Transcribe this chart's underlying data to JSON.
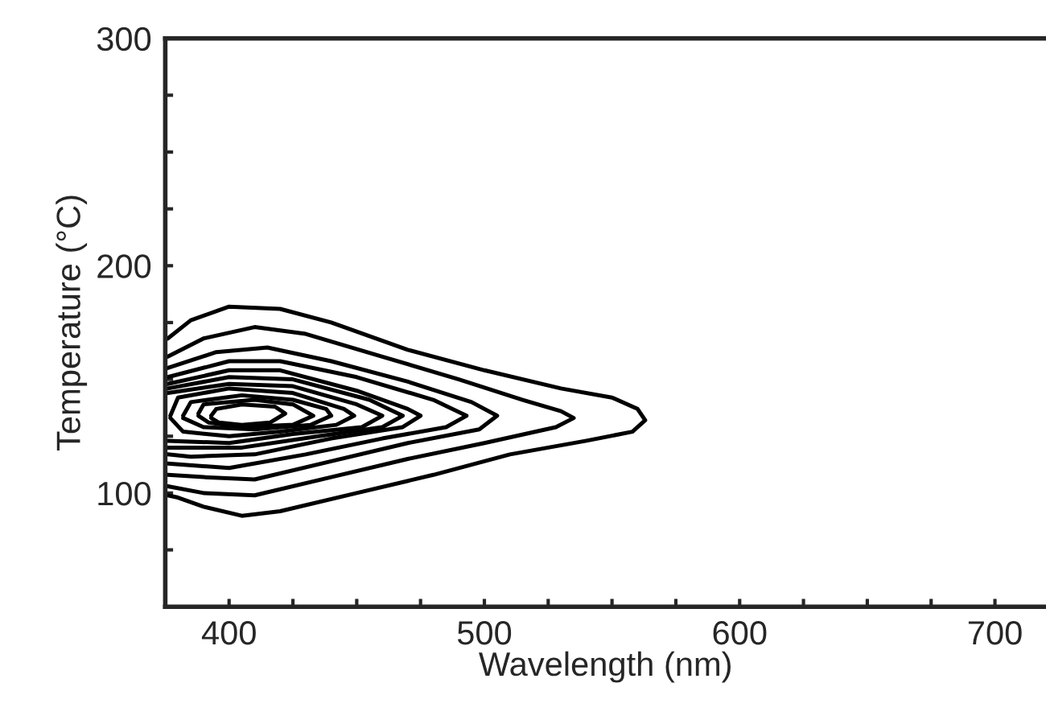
{
  "chart_data": {
    "type": "line",
    "xlabel": "Wavelength (nm)",
    "ylabel": "Temperature (°C)",
    "xlim": [
      375,
      720
    ],
    "ylim": [
      50,
      300
    ],
    "xticks": [
      {
        "value": 400,
        "label": "400"
      },
      {
        "value": 425,
        "label": null
      },
      {
        "value": 450,
        "label": null
      },
      {
        "value": 475,
        "label": null
      },
      {
        "value": 500,
        "label": "500"
      },
      {
        "value": 525,
        "label": null
      },
      {
        "value": 550,
        "label": null
      },
      {
        "value": 575,
        "label": null
      },
      {
        "value": 600,
        "label": "600"
      },
      {
        "value": 625,
        "label": null
      },
      {
        "value": 650,
        "label": null
      },
      {
        "value": 675,
        "label": null
      },
      {
        "value": 700,
        "label": "700"
      }
    ],
    "yticks": [
      {
        "value": 75,
        "label": null
      },
      {
        "value": 100,
        "label": "100"
      },
      {
        "value": 125,
        "label": null
      },
      {
        "value": 150,
        "label": null
      },
      {
        "value": 175,
        "label": null
      },
      {
        "value": 200,
        "label": "200"
      },
      {
        "value": 225,
        "label": null
      },
      {
        "value": 250,
        "label": null
      },
      {
        "value": 275,
        "label": null
      },
      {
        "value": 300,
        "label": "300"
      }
    ],
    "grid": false,
    "marker": "none",
    "line_style": "solid",
    "series": [
      {
        "color": "#000000",
        "x": [
          376,
          385,
          400,
          420,
          440,
          470,
          500,
          530,
          550,
          560,
          563,
          558,
          540,
          510,
          480,
          450,
          420,
          405,
          390,
          380,
          376
        ],
        "values": [
          168,
          176,
          182,
          181,
          175,
          163,
          154,
          146,
          142,
          137,
          132,
          127,
          123,
          117,
          108,
          100,
          92,
          90,
          94,
          98,
          99
        ]
      },
      {
        "color": "#000000",
        "x": [
          376,
          390,
          410,
          430,
          460,
          490,
          515,
          530,
          535,
          528,
          500,
          470,
          440,
          410,
          390,
          376
        ],
        "values": [
          160,
          168,
          173,
          170,
          160,
          150,
          141,
          136,
          133,
          129,
          122,
          115,
          107,
          99,
          100,
          103
        ]
      },
      {
        "color": "#000000",
        "x": [
          376,
          395,
          415,
          440,
          470,
          495,
          505,
          498,
          470,
          440,
          410,
          390,
          376
        ],
        "values": [
          155,
          162,
          164,
          158,
          149,
          140,
          134,
          128,
          122,
          114,
          106,
          107,
          108
        ]
      },
      {
        "color": "#000000",
        "x": [
          376,
          400,
          420,
          450,
          480,
          493,
          485,
          460,
          430,
          400,
          376
        ],
        "values": [
          151,
          158,
          158,
          151,
          141,
          134,
          129,
          124,
          117,
          111,
          113
        ]
      },
      {
        "color": "#000000",
        "x": [
          376,
          400,
          420,
          450,
          470,
          475,
          468,
          440,
          410,
          385,
          376
        ],
        "values": [
          148,
          154,
          154,
          145,
          137,
          134,
          129,
          124,
          117,
          116,
          117
        ]
      },
      {
        "color": "#000000",
        "x": [
          376,
          400,
          425,
          455,
          468,
          460,
          435,
          405,
          376
        ],
        "values": [
          146,
          151,
          150,
          141,
          134,
          129,
          125,
          120,
          120
        ]
      },
      {
        "color": "#000000",
        "x": [
          376,
          400,
          425,
          450,
          460,
          452,
          425,
          400,
          376
        ],
        "values": [
          144,
          148,
          147,
          139,
          134,
          129,
          126,
          122,
          123
        ]
      },
      {
        "color": "#000000",
        "x": [
          377,
          380,
          400,
          425,
          445,
          449,
          442,
          420,
          400,
          382,
          377
        ],
        "values": [
          134,
          142,
          146,
          144,
          137,
          134,
          130,
          127,
          125,
          127,
          133
        ]
      },
      {
        "color": "#000000",
        "x": [
          382,
          385,
          405,
          425,
          438,
          440,
          432,
          410,
          390,
          382
        ],
        "values": [
          134,
          140,
          143,
          141,
          137,
          134,
          130,
          128,
          129,
          133
        ]
      },
      {
        "color": "#000000",
        "x": [
          388,
          390,
          410,
          425,
          433,
          425,
          405,
          392,
          388
        ],
        "values": [
          135,
          139,
          141,
          139,
          134,
          130,
          129,
          131,
          134
        ]
      },
      {
        "color": "#000000",
        "x": [
          393,
          395,
          405,
          418,
          422,
          416,
          405,
          396,
          393
        ],
        "values": [
          134,
          137,
          139,
          138,
          135,
          131,
          130,
          131,
          133
        ]
      }
    ]
  }
}
